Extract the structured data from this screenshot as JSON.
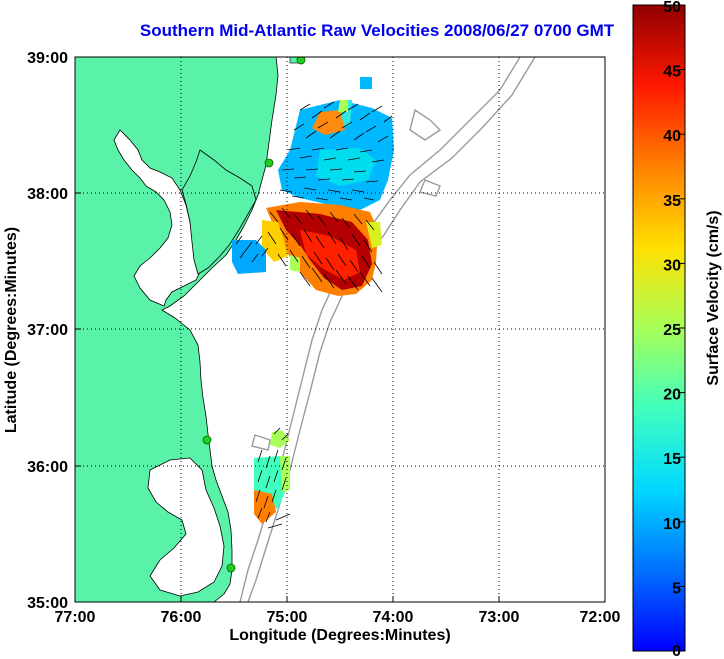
{
  "title": "Southern Mid-Atlantic Raw Velocities 2008/06/27 0700 GMT",
  "xlabel": "Longitude (Degrees:Minutes)",
  "ylabel": "Latitude (Degrees:Minutes)",
  "x_ticks": [
    "77:00",
    "76:00",
    "75:00",
    "74:00",
    "73:00",
    "72:00"
  ],
  "y_ticks": [
    "39:00",
    "38:00",
    "37:00",
    "36:00",
    "35:00"
  ],
  "colorbar": {
    "label": "Surface Velocity (cm/s)",
    "ticks": [
      "50",
      "45",
      "40",
      "35",
      "30",
      "25",
      "20",
      "15",
      "10",
      "5",
      "0"
    ],
    "range": [
      0,
      50
    ]
  },
  "colors": {
    "land": "#5af2a8",
    "title": "#0000ee",
    "bathymetry": "#9a9a9a",
    "station": "#22cc22"
  },
  "chart_data": {
    "type": "heatmap",
    "xlim_lon": [
      -77,
      -72
    ],
    "ylim_lat": [
      35,
      39
    ],
    "grid": true,
    "colorbar_placement": "right"
  }
}
